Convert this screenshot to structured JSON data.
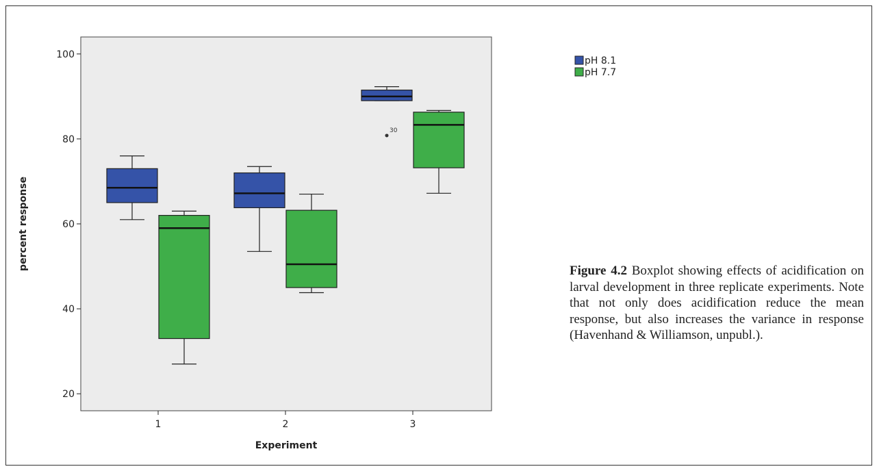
{
  "chart_data": {
    "type": "boxplot",
    "xlabel": "Experiment",
    "ylabel": "percent response",
    "categories": [
      "1",
      "2",
      "3"
    ],
    "ylim": [
      16,
      104
    ],
    "yticks": [
      20,
      40,
      60,
      80,
      100
    ],
    "grid": false,
    "legend_position": "top-right, outside plot",
    "series": [
      {
        "name": "pH 8.1",
        "color": "#3553a8",
        "boxes": [
          {
            "min": 61,
            "q1": 65,
            "median": 68.5,
            "q3": 73,
            "max": 76
          },
          {
            "min": 53.5,
            "q1": 63.8,
            "median": 67.2,
            "q3": 72,
            "max": 73.5
          },
          {
            "min": 89,
            "q1": 89,
            "median": 90,
            "q3": 91.5,
            "max": 92.3
          }
        ]
      },
      {
        "name": "pH 7.7",
        "color": "#3fae49",
        "boxes": [
          {
            "min": 27,
            "q1": 33,
            "median": 59,
            "q3": 62,
            "max": 63
          },
          {
            "min": 43.8,
            "q1": 45,
            "median": 50.5,
            "q3": 63.2,
            "max": 67
          },
          {
            "min": 67.2,
            "q1": 73.2,
            "median": 83.3,
            "q3": 86.3,
            "max": 86.7
          }
        ]
      }
    ],
    "outliers": [
      {
        "series": "pH 8.1",
        "category": "3",
        "value": 80.8,
        "label": "30"
      }
    ]
  },
  "caption": {
    "figure_label": "Figure 4.2",
    "text": "Boxplot showing effects of acidification on larval development in three replicate experiments. Note that not only does acidification reduce the mean response, but also increases the variance in response (Havenhand & Williamson, unpubl.)."
  },
  "colors": {
    "plot_background": "#ececec",
    "axis": "#222222"
  }
}
